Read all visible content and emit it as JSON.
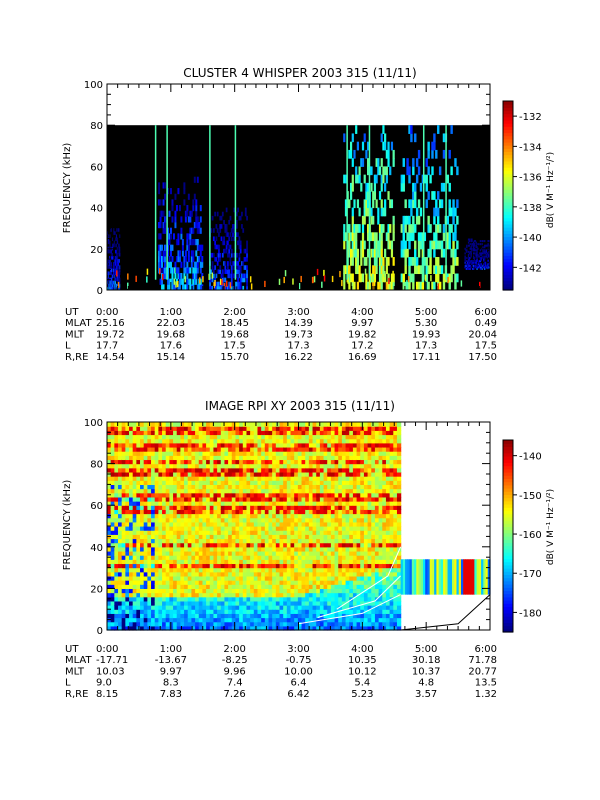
{
  "chart_data": [
    {
      "type": "heatmap",
      "title": "CLUSTER 4 WHISPER 2003 315 (11/11)",
      "ylabel": "FREQUENCY (kHz)",
      "ylim": [
        0,
        100
      ],
      "yticks": [
        0,
        20,
        40,
        60,
        80,
        100
      ],
      "x_ticks": [
        "0:00",
        "1:00",
        "2:00",
        "3:00",
        "4:00",
        "5:00",
        "6:00"
      ],
      "colorbar": {
        "label": "dB( V M⁻¹ Hz⁻¹/²)",
        "ticks": [
          -132,
          -134,
          -136,
          -138,
          -140,
          -142
        ],
        "range": [
          -143.5,
          -131
        ]
      },
      "ephemeris": [
        {
          "label": "UT",
          "values": [
            "0:00",
            "1:00",
            "2:00",
            "3:00",
            "4:00",
            "5:00",
            "6:00"
          ]
        },
        {
          "label": "MLAT",
          "values": [
            "25.16",
            "22.03",
            "18.45",
            "14.39",
            "9.97",
            "5.30",
            "0.49"
          ]
        },
        {
          "label": "MLT",
          "values": [
            "19.72",
            "19.68",
            "19.68",
            "19.73",
            "19.82",
            "19.93",
            "20.04"
          ]
        },
        {
          "label": "L",
          "values": [
            "17.7",
            "17.6",
            "17.5",
            "17.3",
            "17.2",
            "17.3",
            "17.5"
          ]
        },
        {
          "label": "R,RE",
          "values": [
            "14.54",
            "15.14",
            "15.70",
            "16.22",
            "16.69",
            "17.11",
            "17.50"
          ]
        }
      ],
      "notes": {
        "data_extent_kHz": [
          0,
          80
        ],
        "enhancements": [
          {
            "x_hours": [
              0.0,
              0.2
            ],
            "f_kHz": [
              0,
              30
            ],
            "level_dB": -141
          },
          {
            "x_hours": [
              0.8,
              1.5
            ],
            "f_kHz": [
              0,
              55
            ],
            "level_dB": -140
          },
          {
            "x_hours": [
              1.6,
              2.2
            ],
            "f_kHz": [
              0,
              40
            ],
            "level_dB": -141
          },
          {
            "x_hours": [
              3.7,
              4.5
            ],
            "f_kHz": [
              0,
              80
            ],
            "level_dB": -136
          },
          {
            "x_hours": [
              4.6,
              5.5
            ],
            "f_kHz": [
              0,
              80
            ],
            "level_dB": -137
          },
          {
            "x_hours": [
              5.6,
              6.0
            ],
            "f_kHz": [
              10,
              25
            ],
            "level_dB": -142
          }
        ]
      }
    },
    {
      "type": "heatmap",
      "title": "IMAGE RPI XY 2003 315 (11/11)",
      "ylabel": "FREQUENCY (kHz)",
      "ylim": [
        0,
        100
      ],
      "yticks": [
        0,
        20,
        40,
        60,
        80,
        100
      ],
      "x_ticks": [
        "0:00",
        "1:00",
        "2:00",
        "3:00",
        "4:00",
        "5:00",
        "6:00"
      ],
      "colorbar": {
        "label": "dB( V M⁻¹ Hz⁻¹/²)",
        "ticks": [
          -140,
          -150,
          -160,
          -170,
          -180
        ],
        "range": [
          -185,
          -136
        ]
      },
      "ephemeris": [
        {
          "label": "UT",
          "values": [
            "0:00",
            "1:00",
            "2:00",
            "3:00",
            "4:00",
            "5:00",
            "6:00"
          ]
        },
        {
          "label": "MLAT",
          "values": [
            "-17.71",
            "-13.67",
            "-8.25",
            "-0.75",
            "10.35",
            "30.18",
            "71.78"
          ]
        },
        {
          "label": "MLT",
          "values": [
            "10.03",
            "9.97",
            "9.96",
            "10.00",
            "10.12",
            "10.37",
            "20.77"
          ]
        },
        {
          "label": "L",
          "values": [
            "9.0",
            "8.3",
            "7.4",
            "6.4",
            "5.4",
            "4.8",
            "13.5"
          ]
        },
        {
          "label": "R,RE",
          "values": [
            "8.15",
            "7.83",
            "7.26",
            "6.42",
            "5.23",
            "3.57",
            "1.32"
          ]
        }
      ],
      "notes": {
        "main_extent_hours": [
          0,
          4.6
        ],
        "late_band": {
          "x_hours": [
            4.6,
            6.0
          ],
          "f_kHz": [
            17,
            34
          ]
        },
        "background_level_dB": -155,
        "stripes_kHz": [
          100,
          95,
          87,
          80,
          75,
          63,
          57,
          40,
          30
        ],
        "overlay_curves": [
          {
            "points": [
              [
                3.0,
                3
              ],
              [
                4.0,
                8
              ],
              [
                4.6,
                17
              ]
            ]
          },
          {
            "points": [
              [
                3.3,
                6
              ],
              [
                4.2,
                14
              ],
              [
                4.6,
                26
              ]
            ]
          },
          {
            "points": [
              [
                3.6,
                10
              ],
              [
                4.4,
                26
              ],
              [
                4.6,
                40
              ]
            ]
          },
          {
            "points": [
              [
                4.6,
                0
              ],
              [
                5.5,
                3
              ],
              [
                6.0,
                17
              ]
            ]
          }
        ]
      }
    }
  ]
}
